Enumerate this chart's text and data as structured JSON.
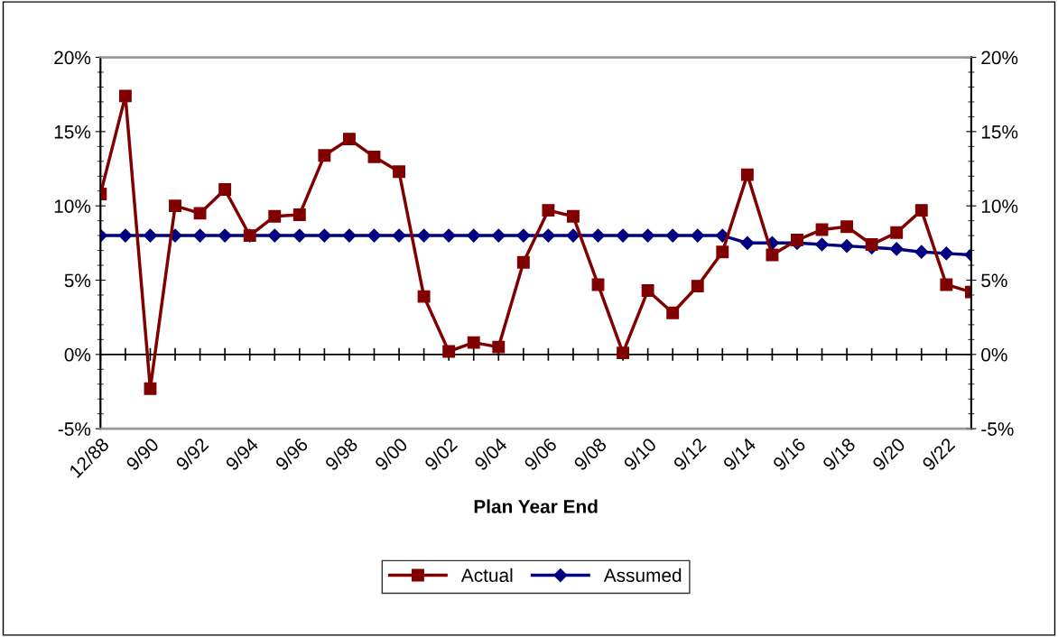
{
  "chart_data": {
    "type": "line",
    "xlabel": "Plan Year End",
    "categories": [
      "12/88",
      null,
      "9/90",
      null,
      "9/92",
      null,
      "9/94",
      null,
      "9/96",
      null,
      "9/98",
      null,
      "9/00",
      null,
      "9/02",
      null,
      "9/04",
      null,
      "9/06",
      null,
      "9/08",
      null,
      "9/10",
      null,
      "9/12",
      null,
      "9/14",
      null,
      "9/16",
      null,
      "9/18",
      null,
      "9/20",
      null,
      "9/22",
      null
    ],
    "series": [
      {
        "name": "Actual",
        "color": "#800000",
        "marker": "square",
        "values": [
          10.8,
          17.4,
          -2.3,
          10.0,
          9.5,
          11.1,
          8.0,
          9.3,
          9.4,
          13.4,
          14.5,
          13.3,
          12.3,
          3.9,
          0.2,
          0.8,
          0.5,
          6.2,
          9.7,
          9.3,
          4.7,
          0.1,
          4.3,
          2.8,
          4.6,
          6.9,
          12.1,
          6.7,
          7.7,
          8.4,
          8.6,
          7.4,
          8.2,
          9.7,
          4.7,
          4.2
        ]
      },
      {
        "name": "Assumed",
        "color": "#000080",
        "marker": "diamond",
        "values": [
          8.0,
          8.0,
          8.0,
          8.0,
          8.0,
          8.0,
          8.0,
          8.0,
          8.0,
          8.0,
          8.0,
          8.0,
          8.0,
          8.0,
          8.0,
          8.0,
          8.0,
          8.0,
          8.0,
          8.0,
          8.0,
          8.0,
          8.0,
          8.0,
          8.0,
          8.0,
          7.5,
          7.5,
          7.5,
          7.4,
          7.3,
          7.2,
          7.1,
          6.9,
          6.8,
          6.7
        ]
      }
    ],
    "ylim": [
      -5,
      20
    ],
    "yticks": [
      {
        "value": -5,
        "label": "-5%"
      },
      {
        "value": 0,
        "label": "0%"
      },
      {
        "value": 5,
        "label": "5%"
      },
      {
        "value": 10,
        "label": "10%"
      },
      {
        "value": 15,
        "label": "15%"
      },
      {
        "value": 20,
        "label": "20%"
      }
    ],
    "y2lim": [
      -5,
      20
    ],
    "y2ticks": [
      {
        "value": -5,
        "label": "-5%"
      },
      {
        "value": 0,
        "label": "0%"
      },
      {
        "value": 5,
        "label": "5%"
      },
      {
        "value": 10,
        "label": "10%"
      },
      {
        "value": 15,
        "label": "15%"
      },
      {
        "value": 20,
        "label": "20%"
      }
    ],
    "legend": "bottom",
    "line_style": "solid"
  }
}
